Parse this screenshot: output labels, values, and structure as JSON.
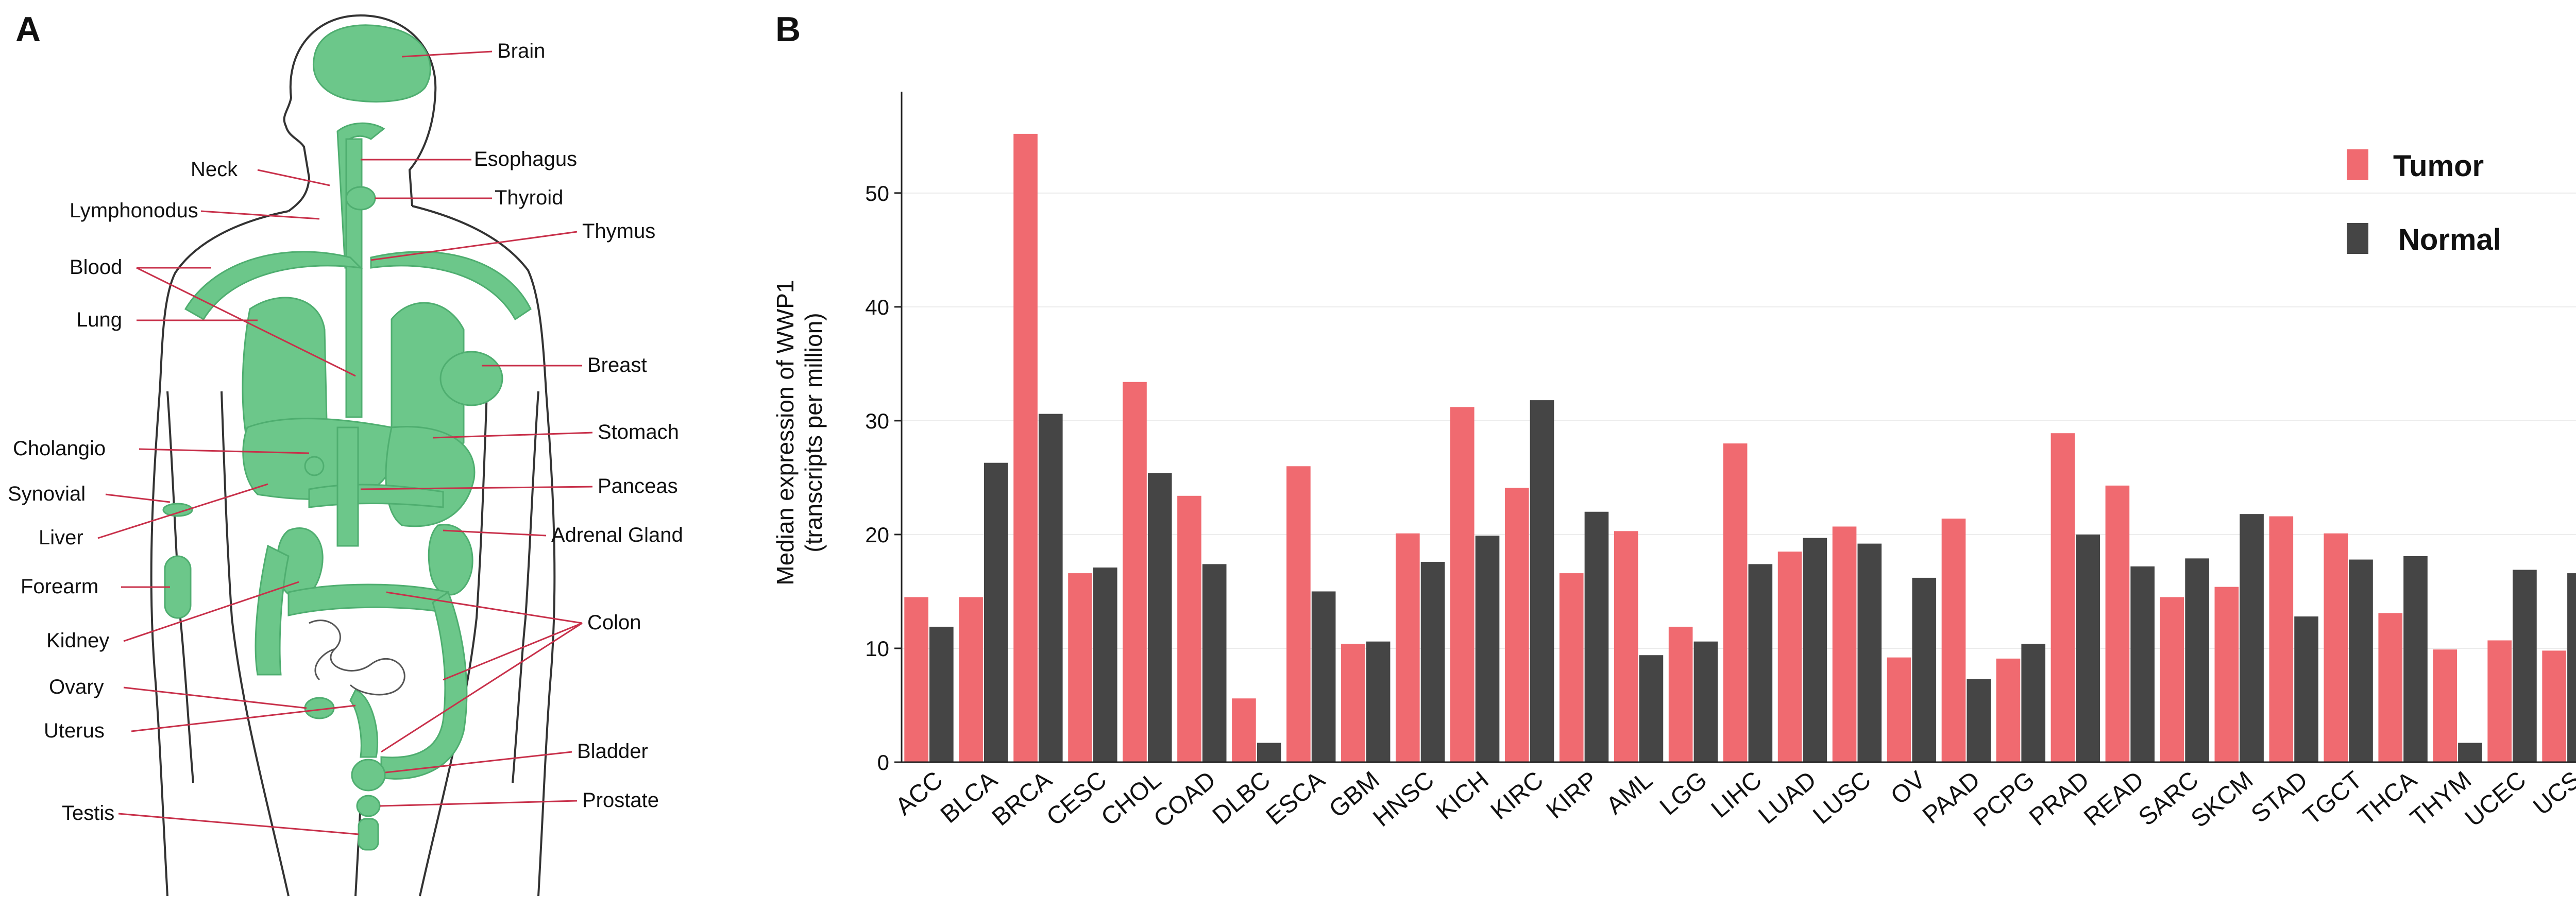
{
  "panel_a": {
    "letter": "A",
    "labels": [
      "Brain",
      "Esophagus",
      "Neck",
      "Thyroid",
      "Lymphonodus",
      "Thymus",
      "Blood",
      "Lung",
      "Breast",
      "Cholangio",
      "Stomach",
      "Synovial",
      "Panceas",
      "Liver",
      "Adrenal Gland",
      "Forearm",
      "Colon",
      "Kidney",
      "Ovary",
      "Uterus",
      "Bladder",
      "Prostate",
      "Testis"
    ],
    "colors": {
      "organ": "#6cc78a",
      "body_outline": "#333333",
      "leader_line": "#c8304a"
    }
  },
  "panel_b": {
    "letter": "B"
  },
  "chart_data": {
    "type": "bar",
    "title": "",
    "xlabel": "",
    "ylabel_line1": "Median expression of WWP1",
    "ylabel_line2": "(transcripts per million)",
    "ylim": [
      0,
      58
    ],
    "yticks": [
      0,
      10,
      20,
      30,
      40,
      50
    ],
    "grid": true,
    "legend_position": "top-right",
    "categories": [
      "ACC",
      "BLCA",
      "BRCA",
      "CESC",
      "CHOL",
      "COAD",
      "DLBC",
      "ESCA",
      "GBM",
      "HNSC",
      "KICH",
      "KIRC",
      "KIRP",
      "AML",
      "LGG",
      "LIHC",
      "LUAD",
      "LUSC",
      "OV",
      "PAAD",
      "PCPG",
      "PRAD",
      "READ",
      "SARC",
      "SKCM",
      "STAD",
      "TGCT",
      "THCA",
      "THYM",
      "UCEC",
      "UCS"
    ],
    "series": [
      {
        "name": "Tumor",
        "color": "#f06a70",
        "values": [
          14.5,
          14.5,
          55.2,
          16.6,
          33.4,
          23.4,
          5.6,
          26.0,
          10.4,
          20.1,
          31.2,
          24.1,
          16.6,
          20.3,
          11.9,
          28.0,
          18.5,
          20.7,
          9.2,
          21.4,
          9.1,
          28.9,
          24.3,
          14.5,
          15.4,
          21.6,
          20.1,
          13.1,
          9.9,
          10.7,
          9.8
        ]
      },
      {
        "name": "Normal",
        "color": "#454545",
        "values": [
          11.9,
          26.3,
          30.6,
          17.1,
          25.4,
          17.4,
          1.7,
          15.0,
          10.6,
          17.6,
          19.9,
          31.8,
          22.0,
          9.4,
          10.6,
          17.4,
          19.7,
          19.2,
          16.2,
          7.3,
          10.4,
          20.0,
          17.2,
          17.9,
          21.8,
          12.8,
          17.8,
          18.1,
          1.7,
          16.9,
          16.6
        ]
      }
    ]
  }
}
